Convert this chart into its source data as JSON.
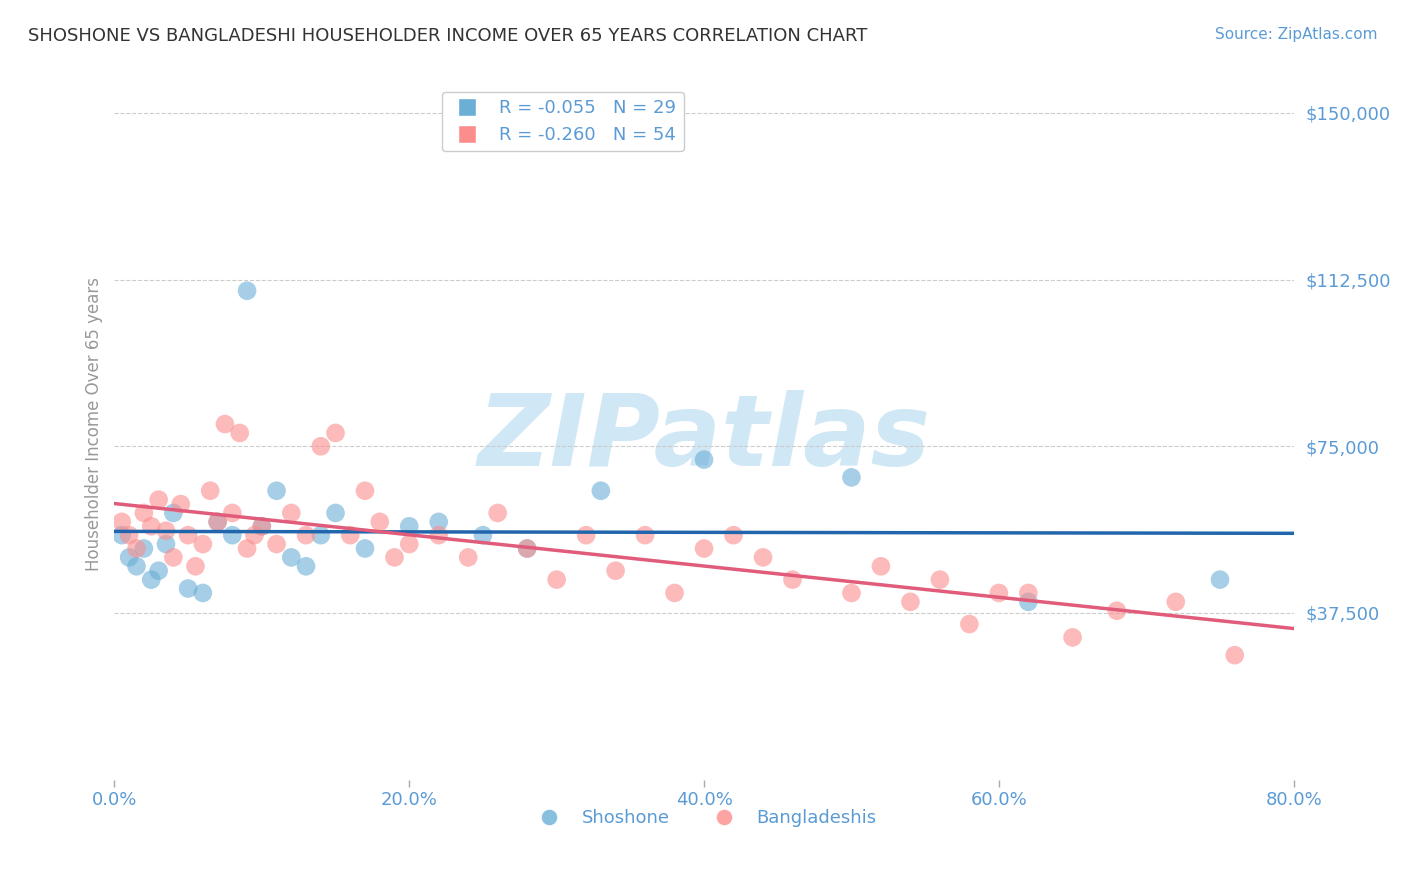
{
  "title": "SHOSHONE VS BANGLADESHI HOUSEHOLDER INCOME OVER 65 YEARS CORRELATION CHART",
  "source_text": "Source: ZipAtlas.com",
  "ylabel": "Householder Income Over 65 years",
  "xlabel_ticks": [
    "0.0%",
    "20.0%",
    "40.0%",
    "60.0%",
    "80.0%"
  ],
  "xlabel_vals": [
    0.0,
    20.0,
    40.0,
    60.0,
    80.0
  ],
  "xlim": [
    0.0,
    80.0
  ],
  "ylim": [
    0,
    160000
  ],
  "yticks": [
    0,
    37500,
    75000,
    112500,
    150000
  ],
  "ytick_labels": [
    "",
    "$37,500",
    "$75,000",
    "$112,500",
    "$150,000"
  ],
  "shoshone_color": "#6baed6",
  "bangladeshi_color": "#fc8d8d",
  "shoshone_line_color": "#2166ac",
  "bangladeshi_line_color": "#e05c7a",
  "shoshone_R": -0.055,
  "shoshone_N": 29,
  "bangladeshi_R": -0.26,
  "bangladeshi_N": 54,
  "legend_label_1": "R = -0.055   N = 29",
  "legend_label_2": "R = -0.260   N = 54",
  "bottom_label_1": "Shoshone",
  "bottom_label_2": "Bangladeshis",
  "shoshone_x": [
    0.5,
    1.0,
    1.5,
    2.0,
    2.5,
    3.0,
    3.5,
    4.0,
    5.0,
    6.0,
    7.0,
    8.0,
    9.0,
    10.0,
    11.0,
    12.0,
    13.0,
    14.0,
    15.0,
    17.0,
    20.0,
    22.0,
    25.0,
    28.0,
    33.0,
    40.0,
    50.0,
    62.0,
    75.0
  ],
  "shoshone_y": [
    55000,
    50000,
    48000,
    52000,
    45000,
    47000,
    53000,
    60000,
    43000,
    42000,
    58000,
    55000,
    110000,
    57000,
    65000,
    50000,
    48000,
    55000,
    60000,
    52000,
    57000,
    58000,
    55000,
    52000,
    65000,
    72000,
    68000,
    40000,
    45000
  ],
  "bangladeshi_x": [
    0.5,
    1.0,
    1.5,
    2.0,
    2.5,
    3.0,
    3.5,
    4.0,
    4.5,
    5.0,
    5.5,
    6.0,
    6.5,
    7.0,
    7.5,
    8.0,
    8.5,
    9.0,
    9.5,
    10.0,
    11.0,
    12.0,
    13.0,
    14.0,
    15.0,
    16.0,
    17.0,
    18.0,
    19.0,
    20.0,
    22.0,
    24.0,
    26.0,
    28.0,
    30.0,
    32.0,
    34.0,
    36.0,
    38.0,
    40.0,
    42.0,
    44.0,
    46.0,
    50.0,
    52.0,
    54.0,
    56.0,
    58.0,
    60.0,
    62.0,
    65.0,
    68.0,
    72.0,
    76.0
  ],
  "bangladeshi_y": [
    58000,
    55000,
    52000,
    60000,
    57000,
    63000,
    56000,
    50000,
    62000,
    55000,
    48000,
    53000,
    65000,
    58000,
    80000,
    60000,
    78000,
    52000,
    55000,
    57000,
    53000,
    60000,
    55000,
    75000,
    78000,
    55000,
    65000,
    58000,
    50000,
    53000,
    55000,
    50000,
    60000,
    52000,
    45000,
    55000,
    47000,
    55000,
    42000,
    52000,
    55000,
    50000,
    45000,
    42000,
    48000,
    40000,
    45000,
    35000,
    42000,
    42000,
    32000,
    38000,
    40000,
    28000
  ],
  "background_color": "#ffffff",
  "grid_color": "#cccccc",
  "title_color": "#333333",
  "axis_label_color": "#5b9bd5",
  "watermark_text": "ZIPatlas",
  "watermark_color": "#d0e8f5"
}
